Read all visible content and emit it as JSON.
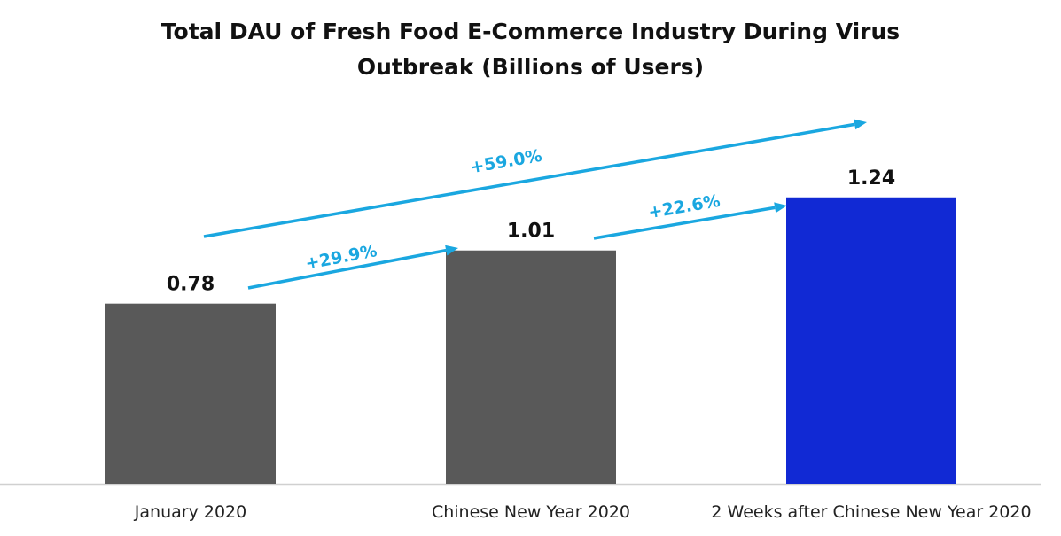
{
  "chart_data": {
    "type": "bar",
    "title_lines": [
      "Total DAU of Fresh Food E-Commerce Industry During Virus",
      "Outbreak (Billions of Users)"
    ],
    "xlabel": "",
    "ylabel": "",
    "ylim": [
      0,
      1.4
    ],
    "grid": false,
    "categories": [
      "January 2020",
      "Chinese New Year 2020",
      "2 Weeks after Chinese New Year 2020"
    ],
    "values": [
      0.78,
      1.01,
      1.24
    ],
    "value_labels": [
      "0.78",
      "1.01",
      "1.24"
    ],
    "bar_colors": [
      "#595959",
      "#595959",
      "#1129d4"
    ],
    "annotations": [
      {
        "label": "+29.9%",
        "from_category": "January 2020",
        "to_category": "Chinese New Year 2020"
      },
      {
        "label": "+22.6%",
        "from_category": "Chinese New Year 2020",
        "to_category": "2 Weeks after Chinese New Year 2020"
      },
      {
        "label": "+59.0%",
        "from_category": "January 2020",
        "to_category": "2 Weeks after Chinese New Year 2020"
      }
    ],
    "annotation_color": "#1aa7e0"
  }
}
